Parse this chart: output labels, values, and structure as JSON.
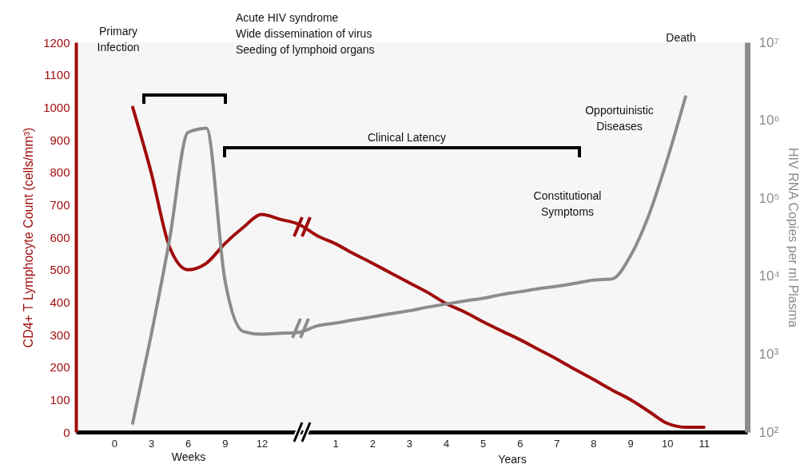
{
  "chart_data": {
    "type": "line",
    "ylabel": "CD4+ T Lymphocyte Count (cells/mm³)",
    "y2label": "HIV RNA Copies per ml Plasma",
    "categories": [
      "0",
      null,
      "3",
      null,
      "6",
      null,
      "9",
      null,
      "12",
      null,
      null,
      null,
      "1",
      null,
      "2",
      null,
      "3",
      null,
      "4",
      null,
      "5",
      null,
      "6",
      null,
      "7",
      null,
      "8",
      null,
      "9",
      null,
      "10",
      null,
      "11"
    ],
    "series": [
      {
        "color": "#a00c0c",
        "values": [
          null,
          1000,
          800,
          570,
          500,
          520,
          580,
          630,
          670,
          655,
          640,
          605,
          580,
          549,
          520,
          490,
          460,
          430,
          396,
          370,
          340,
          312,
          285,
          255,
          225,
          193,
          162,
          130,
          100,
          64,
          27,
          15,
          15
        ]
      },
      {
        "color": "#8c8c8c",
        "axis": "y2",
        "values": [
          null,
          130,
          1740,
          29500,
          700000,
          790000,
          9100,
          1950,
          1800,
          1850,
          1900,
          2300,
          2500,
          2750,
          3000,
          3300,
          3600,
          4000,
          4400,
          4800,
          5200,
          5800,
          6300,
          6900,
          7400,
          8100,
          8900,
          9200,
          18000,
          60000,
          310000,
          2000000,
          null
        ]
      }
    ],
    "ylim": [
      0,
      1200
    ],
    "yticks": [
      0,
      100,
      200,
      300,
      400,
      500,
      600,
      700,
      800,
      900,
      1000,
      1100,
      1200
    ],
    "y2lim": [
      100,
      10000000
    ],
    "y2ticks": [
      {
        "value": 100,
        "label": "10²"
      },
      {
        "value": 1000,
        "label": "10³"
      },
      {
        "value": 10000,
        "label": "10⁴"
      },
      {
        "value": 100000,
        "label": "10⁵"
      },
      {
        "value": 1000000,
        "label": "10⁶"
      },
      {
        "value": 10000000,
        "label": "10⁷"
      }
    ],
    "log": "y2",
    "grid": false,
    "legend": false,
    "line_style": "solid",
    "annotations": [
      "Primary\nInfection",
      "Acute HIV syndrome\nWide dissemination of virus\nSeeding of lymphoid organs",
      "Clinical Latency",
      "Constitutional\nSymptoms",
      "Opportuinistic\nDiseases",
      "Death",
      "Weeks",
      "Years"
    ]
  }
}
